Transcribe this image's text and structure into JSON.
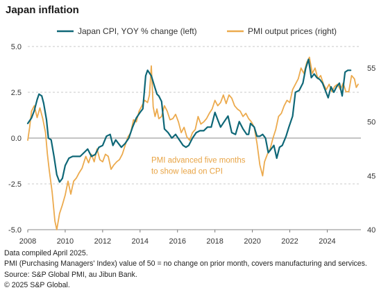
{
  "title": "Japan inflation",
  "colors": {
    "cpi": "#0e6777",
    "pmi": "#ecaa4d",
    "grid": "#c9c9c9",
    "annotation": "#e8a445"
  },
  "chart_data": {
    "type": "line",
    "title": "Japan inflation",
    "legend_position": "top",
    "grid": true,
    "x_ticks": [
      "2008",
      "2010",
      "2012",
      "2014",
      "2016",
      "2018",
      "2020",
      "2022",
      "2024"
    ],
    "x_range": [
      2008.0,
      2025.8
    ],
    "y_left": {
      "range": [
        -5.0,
        5.0
      ],
      "ticks": [
        "5.0",
        "2.5",
        "0.0",
        "-2.5",
        "-5.0"
      ],
      "tick_values": [
        5.0,
        2.5,
        0.0,
        -2.5,
        -5.0
      ]
    },
    "y_right": {
      "range": [
        40,
        57
      ],
      "ticks": [
        "55",
        "50",
        "45",
        "40"
      ],
      "tick_values": [
        55,
        50,
        45,
        40
      ]
    },
    "series": [
      {
        "name": "Japan CPI, YOY % change (left)",
        "axis": "left",
        "color": "#0e6777",
        "points": [
          [
            2008.0,
            0.8
          ],
          [
            2008.2,
            1.1
          ],
          [
            2008.35,
            1.5
          ],
          [
            2008.5,
            2.1
          ],
          [
            2008.6,
            2.4
          ],
          [
            2008.75,
            2.3
          ],
          [
            2008.85,
            1.9
          ],
          [
            2009.0,
            1.0
          ],
          [
            2009.1,
            0.0
          ],
          [
            2009.25,
            -0.1
          ],
          [
            2009.4,
            -1.0
          ],
          [
            2009.55,
            -2.0
          ],
          [
            2009.7,
            -2.4
          ],
          [
            2009.85,
            -2.2
          ],
          [
            2010.0,
            -1.5
          ],
          [
            2010.2,
            -1.1
          ],
          [
            2010.4,
            -1.0
          ],
          [
            2010.6,
            -1.0
          ],
          [
            2010.8,
            -1.0
          ],
          [
            2011.0,
            -0.8
          ],
          [
            2011.2,
            -0.6
          ],
          [
            2011.4,
            -1.0
          ],
          [
            2011.6,
            -0.9
          ],
          [
            2011.8,
            -0.5
          ],
          [
            2012.0,
            -0.4
          ],
          [
            2012.2,
            0.1
          ],
          [
            2012.4,
            0.2
          ],
          [
            2012.55,
            -0.4
          ],
          [
            2012.7,
            -0.1
          ],
          [
            2012.85,
            -0.3
          ],
          [
            2013.0,
            -0.5
          ],
          [
            2013.2,
            -0.3
          ],
          [
            2013.4,
            0.0
          ],
          [
            2013.6,
            0.6
          ],
          [
            2013.8,
            1.1
          ],
          [
            2014.0,
            1.4
          ],
          [
            2014.15,
            1.6
          ],
          [
            2014.3,
            3.4
          ],
          [
            2014.4,
            3.7
          ],
          [
            2014.6,
            3.4
          ],
          [
            2014.75,
            2.9
          ],
          [
            2014.9,
            2.4
          ],
          [
            2015.0,
            2.3
          ],
          [
            2015.15,
            2.0
          ],
          [
            2015.3,
            0.5
          ],
          [
            2015.5,
            0.3
          ],
          [
            2015.7,
            0.0
          ],
          [
            2015.9,
            0.2
          ],
          [
            2016.1,
            -0.1
          ],
          [
            2016.3,
            -0.4
          ],
          [
            2016.45,
            -0.5
          ],
          [
            2016.6,
            -0.4
          ],
          [
            2016.8,
            0.0
          ],
          [
            2017.0,
            0.3
          ],
          [
            2017.2,
            0.4
          ],
          [
            2017.4,
            0.4
          ],
          [
            2017.6,
            0.6
          ],
          [
            2017.8,
            0.6
          ],
          [
            2018.0,
            1.4
          ],
          [
            2018.15,
            1.0
          ],
          [
            2018.3,
            0.6
          ],
          [
            2018.5,
            0.9
          ],
          [
            2018.7,
            1.2
          ],
          [
            2018.9,
            0.3
          ],
          [
            2019.1,
            0.2
          ],
          [
            2019.3,
            0.9
          ],
          [
            2019.5,
            0.5
          ],
          [
            2019.7,
            0.2
          ],
          [
            2019.8,
            0.2
          ],
          [
            2019.9,
            0.8
          ],
          [
            2020.1,
            0.6
          ],
          [
            2020.25,
            0.1
          ],
          [
            2020.4,
            0.1
          ],
          [
            2020.55,
            0.2
          ],
          [
            2020.7,
            0.0
          ],
          [
            2020.85,
            -0.8
          ],
          [
            2021.0,
            -0.6
          ],
          [
            2021.15,
            -0.4
          ],
          [
            2021.3,
            -1.1
          ],
          [
            2021.45,
            -0.5
          ],
          [
            2021.6,
            -0.4
          ],
          [
            2021.8,
            0.1
          ],
          [
            2021.95,
            0.6
          ],
          [
            2022.15,
            1.2
          ],
          [
            2022.3,
            2.5
          ],
          [
            2022.5,
            2.6
          ],
          [
            2022.7,
            3.0
          ],
          [
            2022.85,
            3.8
          ],
          [
            2023.0,
            4.3
          ],
          [
            2023.15,
            3.3
          ],
          [
            2023.3,
            3.5
          ],
          [
            2023.45,
            3.3
          ],
          [
            2023.6,
            3.2
          ],
          [
            2023.75,
            3.0
          ],
          [
            2023.9,
            2.6
          ],
          [
            2024.05,
            2.2
          ],
          [
            2024.2,
            2.8
          ],
          [
            2024.35,
            2.5
          ],
          [
            2024.5,
            2.8
          ],
          [
            2024.65,
            3.0
          ],
          [
            2024.8,
            2.3
          ],
          [
            2024.95,
            3.6
          ],
          [
            2025.1,
            3.7
          ],
          [
            2025.25,
            3.7
          ]
        ]
      },
      {
        "name": "PMI output prices (right)",
        "axis": "right",
        "color": "#ecaa4d",
        "points": [
          [
            2008.0,
            48.3
          ],
          [
            2008.1,
            49.5
          ],
          [
            2008.2,
            51.0
          ],
          [
            2008.35,
            51.5
          ],
          [
            2008.5,
            50.4
          ],
          [
            2008.65,
            51.3
          ],
          [
            2008.8,
            50.3
          ],
          [
            2008.95,
            49.0
          ],
          [
            2009.05,
            47.0
          ],
          [
            2009.15,
            45.5
          ],
          [
            2009.3,
            43.5
          ],
          [
            2009.45,
            40.8
          ],
          [
            2009.55,
            40.0
          ],
          [
            2009.7,
            41.5
          ],
          [
            2009.85,
            42.3
          ],
          [
            2010.0,
            43.2
          ],
          [
            2010.15,
            44.5
          ],
          [
            2010.3,
            43.3
          ],
          [
            2010.45,
            44.5
          ],
          [
            2010.6,
            44.8
          ],
          [
            2010.75,
            45.3
          ],
          [
            2010.9,
            45.7
          ],
          [
            2011.1,
            46.8
          ],
          [
            2011.25,
            46.2
          ],
          [
            2011.4,
            47.0
          ],
          [
            2011.55,
            46.3
          ],
          [
            2011.7,
            47.5
          ],
          [
            2011.85,
            46.5
          ],
          [
            2012.0,
            46.3
          ],
          [
            2012.15,
            47.0
          ],
          [
            2012.3,
            46.8
          ],
          [
            2012.45,
            45.6
          ],
          [
            2012.6,
            46.0
          ],
          [
            2012.75,
            46.3
          ],
          [
            2012.9,
            46.5
          ],
          [
            2013.05,
            47.0
          ],
          [
            2013.2,
            47.8
          ],
          [
            2013.35,
            48.6
          ],
          [
            2013.5,
            49.0
          ],
          [
            2013.65,
            50.2
          ],
          [
            2013.8,
            50.0
          ],
          [
            2013.95,
            51.0
          ],
          [
            2014.1,
            51.5
          ],
          [
            2014.25,
            52.0
          ],
          [
            2014.4,
            51.8
          ],
          [
            2014.5,
            52.5
          ],
          [
            2014.6,
            55.2
          ],
          [
            2014.7,
            51.4
          ],
          [
            2014.8,
            50.5
          ],
          [
            2014.9,
            51.2
          ],
          [
            2015.0,
            50.3
          ],
          [
            2015.15,
            50.5
          ],
          [
            2015.3,
            51.5
          ],
          [
            2015.45,
            51.0
          ],
          [
            2015.6,
            50.2
          ],
          [
            2015.75,
            50.3
          ],
          [
            2015.9,
            50.7
          ],
          [
            2016.05,
            50.0
          ],
          [
            2016.2,
            49.0
          ],
          [
            2016.35,
            49.5
          ],
          [
            2016.5,
            48.6
          ],
          [
            2016.65,
            48.3
          ],
          [
            2016.8,
            49.0
          ],
          [
            2016.95,
            49.3
          ],
          [
            2017.1,
            50.5
          ],
          [
            2017.25,
            49.8
          ],
          [
            2017.4,
            50.0
          ],
          [
            2017.55,
            50.3
          ],
          [
            2017.7,
            50.8
          ],
          [
            2017.85,
            51.2
          ],
          [
            2018.0,
            52.0
          ],
          [
            2018.15,
            51.5
          ],
          [
            2018.3,
            51.8
          ],
          [
            2018.45,
            52.5
          ],
          [
            2018.6,
            51.7
          ],
          [
            2018.75,
            52.5
          ],
          [
            2018.9,
            52.2
          ],
          [
            2019.05,
            51.5
          ],
          [
            2019.2,
            51.2
          ],
          [
            2019.35,
            51.0
          ],
          [
            2019.5,
            50.5
          ],
          [
            2019.65,
            50.8
          ],
          [
            2019.8,
            50.3
          ],
          [
            2019.95,
            50.0
          ],
          [
            2020.1,
            49.5
          ],
          [
            2020.25,
            48.0
          ],
          [
            2020.4,
            46.0
          ],
          [
            2020.55,
            45.0
          ],
          [
            2020.65,
            46.3
          ],
          [
            2020.8,
            47.0
          ],
          [
            2020.95,
            47.5
          ],
          [
            2021.1,
            48.5
          ],
          [
            2021.25,
            49.3
          ],
          [
            2021.4,
            50.5
          ],
          [
            2021.55,
            50.8
          ],
          [
            2021.7,
            51.5
          ],
          [
            2021.85,
            52.0
          ],
          [
            2022.0,
            51.8
          ],
          [
            2022.15,
            53.0
          ],
          [
            2022.3,
            53.5
          ],
          [
            2022.45,
            54.0
          ],
          [
            2022.6,
            55.0
          ],
          [
            2022.75,
            54.5
          ],
          [
            2022.9,
            55.5
          ],
          [
            2023.05,
            56.0
          ],
          [
            2023.2,
            54.5
          ],
          [
            2023.35,
            55.0
          ],
          [
            2023.5,
            54.0
          ],
          [
            2023.65,
            54.3
          ],
          [
            2023.8,
            53.5
          ],
          [
            2023.95,
            53.0
          ],
          [
            2024.1,
            53.5
          ],
          [
            2024.25,
            52.8
          ],
          [
            2024.4,
            53.3
          ],
          [
            2024.55,
            53.5
          ],
          [
            2024.7,
            53.0
          ],
          [
            2024.85,
            53.6
          ],
          [
            2025.0,
            52.8
          ],
          [
            2025.15,
            52.8
          ],
          [
            2025.3,
            54.3
          ],
          [
            2025.45,
            54.0
          ],
          [
            2025.55,
            53.2
          ],
          [
            2025.65,
            53.5
          ]
        ]
      }
    ],
    "annotations": [
      {
        "text": "PMI advanced  five months",
        "x": 2014.6,
        "y_left": -1.35
      },
      {
        "text": "to show lead on CPI",
        "x": 2014.6,
        "y_left": -1.95
      }
    ]
  },
  "notes": [
    "Data compiled April 2025.",
    "PMI (Purchasing Managers' Index) value of 50 = no change on prior month, covers manufacturing and services.",
    "Source: S&P Global PMI, au Jibun Bank.",
    "© 2025 S&P Global."
  ]
}
